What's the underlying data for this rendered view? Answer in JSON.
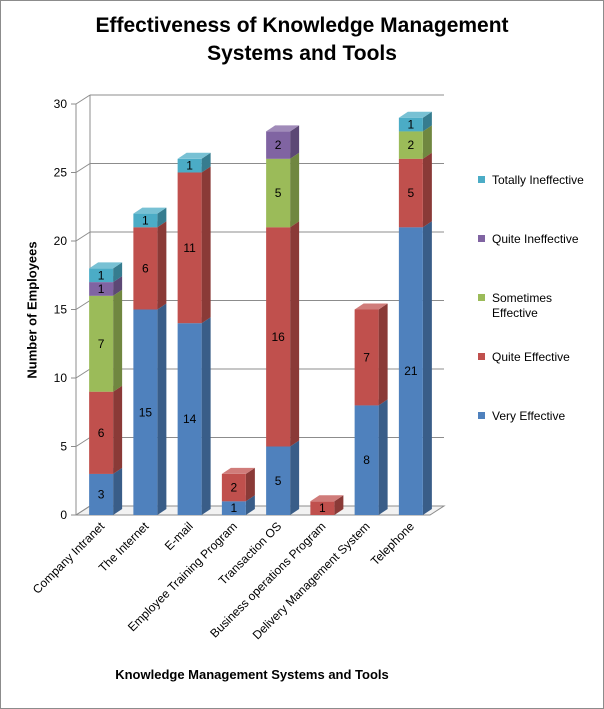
{
  "chart_data": {
    "type": "bar",
    "stacked": true,
    "three_d": true,
    "title_lines": [
      "Effectiveness of Knowledge Management",
      "Systems and Tools"
    ],
    "xlabel": "Knowledge Management Systems and Tools",
    "ylabel": "Number of Employees",
    "ylim": [
      0,
      30
    ],
    "yticks": [
      0,
      5,
      10,
      15,
      20,
      25,
      30
    ],
    "grid": true,
    "legend_position": "right",
    "categories": [
      "Company Intranet",
      "The Internet",
      "E-mail",
      "Employee Training Program",
      "Transaction OS",
      "Business operations Program",
      "Delivery Management System",
      "Telephone"
    ],
    "series": [
      {
        "name": "Very Effective",
        "color": "#4f81bd",
        "values": [
          3,
          15,
          14,
          1,
          5,
          0,
          8,
          21
        ]
      },
      {
        "name": "Quite Effective",
        "color": "#c0504d",
        "values": [
          6,
          6,
          11,
          2,
          16,
          1,
          7,
          5
        ]
      },
      {
        "name": "Sometimes Effective",
        "color": "#9bbb59",
        "values": [
          7,
          0,
          0,
          0,
          5,
          0,
          0,
          2
        ]
      },
      {
        "name": "Quite Ineffective",
        "color": "#8064a2",
        "values": [
          1,
          0,
          0,
          0,
          2,
          0,
          0,
          0
        ]
      },
      {
        "name": "Totally Ineffective",
        "color": "#4bacc6",
        "values": [
          1,
          1,
          1,
          0,
          0,
          0,
          0,
          1
        ]
      }
    ],
    "legend_entries": [
      {
        "lines": [
          "Totally Ineffective"
        ],
        "color": "#4bacc6"
      },
      {
        "lines": [
          "Quite Ineffective"
        ],
        "color": "#8064a2"
      },
      {
        "lines": [
          "Sometimes",
          "Effective"
        ],
        "color": "#9bbb59"
      },
      {
        "lines": [
          "Quite Effective"
        ],
        "color": "#c0504d"
      },
      {
        "lines": [
          "Very Effective"
        ],
        "color": "#4f81bd"
      }
    ]
  }
}
